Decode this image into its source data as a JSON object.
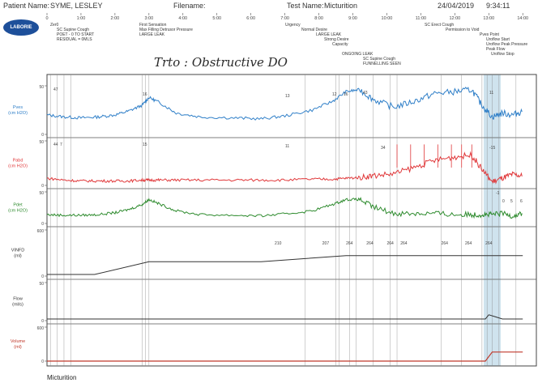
{
  "header": {
    "patient_label": "Patient Name:",
    "patient_name": "SYME, LESLEY",
    "filename_label": "Filename:",
    "test_label": "Test Name:",
    "test_name": "Micturition",
    "date": "24/04/2019",
    "time": "9:34:11",
    "logo_text": "LABORIE"
  },
  "handwriting": "Trto : Obstructive DO",
  "footer_label": "Micturition",
  "colors": {
    "pves": "#2f7fc8",
    "pabd": "#e0383a",
    "pdet": "#2e8b2e",
    "volume": "#c0392b",
    "vinfd": "#333333",
    "highlight": "#cfe3ee"
  },
  "chart_data": {
    "type": "line",
    "title": "",
    "time_ticks": [
      "0",
      "1:00",
      "2:00",
      "3:00",
      "4:00",
      "5:00",
      "6:00",
      "7:00",
      "8:00",
      "9:00",
      "10:00",
      "11:00",
      "12:00",
      "13:00",
      "14:00"
    ],
    "channels": [
      {
        "key": "pves",
        "label": "Pves\n(cm H2O)",
        "scale_top": "50",
        "scale_bottom": "0",
        "color": "#2f7fc8"
      },
      {
        "key": "pabd",
        "label": "Pabd\n(cm H2O)",
        "scale_top": "50",
        "scale_bottom": "0",
        "color": "#e0383a"
      },
      {
        "key": "pdet",
        "label": "Pdet\n(cm H2O)",
        "scale_top": "50",
        "scale_bottom": "0",
        "color": "#2e8b2e"
      },
      {
        "key": "vinfd",
        "label": "VINFD\n(ml)",
        "scale_top": "600",
        "scale_bottom": "0",
        "color": "#333333"
      },
      {
        "key": "flow",
        "label": "Flow\n(ml/s)",
        "scale_top": "50",
        "scale_bottom": "0",
        "color": "#333333"
      },
      {
        "key": "volume",
        "label": "Volume\n(ml)",
        "scale_top": "600",
        "scale_bottom": "0",
        "color": "#c0392b"
      }
    ],
    "event_labels": [
      "Zer0",
      "SC Supine Cough",
      "POET - 0 TO START",
      "RESIDUAL = 0MLS",
      "First Sensation",
      "Max Filling Detrusor Pressure",
      "LARGE LEAK",
      "Urgency",
      "Normal Desire",
      "LARGE LEAK",
      "Strong Desire",
      "Capacity",
      "ONGOING LEAK",
      "SC Supine Cough",
      "FUNNELLING SEEN",
      "SC Erect Cough",
      "Permission to Void",
      "Pves Point",
      "Uroflow Start",
      "Uroflow Peak Pressure",
      "Peak Flow",
      "Uroflow Stop"
    ],
    "vinfd_markers": [
      "210",
      "207",
      "264",
      "264",
      "264",
      "264",
      "264",
      "264",
      "264"
    ],
    "vinfd_values": {
      "x_minutes": [
        0,
        1.4,
        3.0,
        6.3,
        8.8,
        9.2,
        14.0
      ],
      "ml": [
        0,
        0,
        178,
        178,
        264,
        264,
        264
      ]
    },
    "volume_values": {
      "x_minutes": [
        0,
        12.9,
        13.1,
        14.0
      ],
      "ml": [
        0,
        0,
        40,
        40
      ]
    },
    "flow_values": {
      "x_minutes": [
        0,
        12.9,
        13.0,
        13.2,
        13.4,
        14.0
      ],
      "mls": [
        0,
        0,
        6,
        3,
        0,
        0
      ]
    },
    "pressure_values": {
      "x_minutes": [
        0,
        0.5,
        1.0,
        1.5,
        2.0,
        2.4,
        2.8,
        3.0,
        3.3,
        3.8,
        4.5,
        5.5,
        6.3,
        7.0,
        7.8,
        8.4,
        8.8,
        9.2,
        9.6,
        10.2,
        10.8,
        11.4,
        12.0,
        12.5,
        12.8,
        13.1,
        13.4,
        13.7,
        14.0
      ],
      "pves": [
        20,
        18,
        17,
        18,
        20,
        24,
        30,
        38,
        33,
        22,
        18,
        17,
        16,
        19,
        25,
        34,
        44,
        46,
        36,
        28,
        34,
        42,
        44,
        46,
        30,
        18,
        22,
        20,
        24
      ],
      "pabd": [
        8,
        6,
        5,
        5,
        5,
        5,
        6,
        6,
        6,
        6,
        6,
        6,
        6,
        6,
        7,
        7,
        8,
        9,
        11,
        13,
        20,
        28,
        32,
        34,
        18,
        4,
        8,
        12,
        10
      ],
      "pdet": [
        14,
        13,
        13,
        14,
        17,
        22,
        30,
        38,
        31,
        20,
        14,
        13,
        12,
        15,
        20,
        30,
        38,
        38,
        26,
        16,
        16,
        16,
        14,
        14,
        14,
        14,
        16,
        12,
        16
      ]
    },
    "trace_values": [
      "47",
      "44",
      "7",
      "16",
      "15",
      "13",
      "11",
      "12",
      "16",
      "43",
      "34",
      "11",
      "-15",
      "-1",
      "0",
      "5",
      "6"
    ],
    "void_highlight_minutes": [
      12.85,
      13.35
    ]
  }
}
